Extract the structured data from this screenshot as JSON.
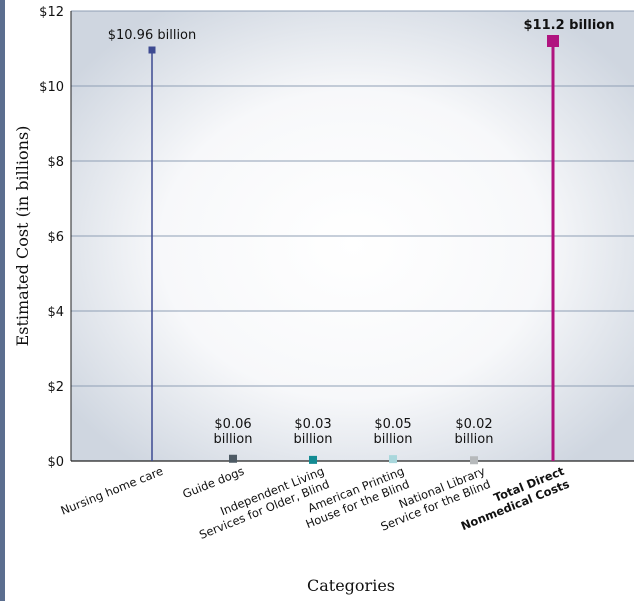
{
  "chart_data": {
    "type": "lollipop",
    "ylabel": "Estimated Cost (in billions)",
    "xlabel": "Categories",
    "ylim": [
      0,
      12
    ],
    "y_ticks": [
      {
        "value": 0,
        "label": "$0"
      },
      {
        "value": 2,
        "label": "$2"
      },
      {
        "value": 4,
        "label": "$4"
      },
      {
        "value": 6,
        "label": "$6"
      },
      {
        "value": 8,
        "label": "$8"
      },
      {
        "value": 10,
        "label": "$10"
      },
      {
        "value": 12,
        "label": "$12"
      }
    ],
    "grid": true,
    "categories": [
      {
        "lines": [
          "Nursing home care"
        ],
        "value": 10.96,
        "value_label": [
          "$10.96 billion"
        ],
        "color": "#3d4a91",
        "bold": false
      },
      {
        "lines": [
          "Guide dogs"
        ],
        "value": 0.06,
        "value_label": [
          "$0.06",
          "billion"
        ],
        "color": "#4d5a64",
        "bold": false
      },
      {
        "lines": [
          "Independent Living",
          "Services for Older, Blind"
        ],
        "value": 0.03,
        "value_label": [
          "$0.03",
          "billion"
        ],
        "color": "#138b93",
        "bold": false
      },
      {
        "lines": [
          "American Printing",
          "House for the Blind"
        ],
        "value": 0.05,
        "value_label": [
          "$0.05",
          "billion"
        ],
        "color": "#a9d7dc",
        "bold": false
      },
      {
        "lines": [
          "National Library",
          "Service for the Blind"
        ],
        "value": 0.02,
        "value_label": [
          "$0.02",
          "billion"
        ],
        "color": "#b6b9bb",
        "bold": false
      },
      {
        "lines": [
          "Total Direct",
          "Nonmedical Costs"
        ],
        "value": 11.2,
        "value_label": [
          "$11.2 billion"
        ],
        "color": "#b0147f",
        "bold": true
      }
    ]
  }
}
